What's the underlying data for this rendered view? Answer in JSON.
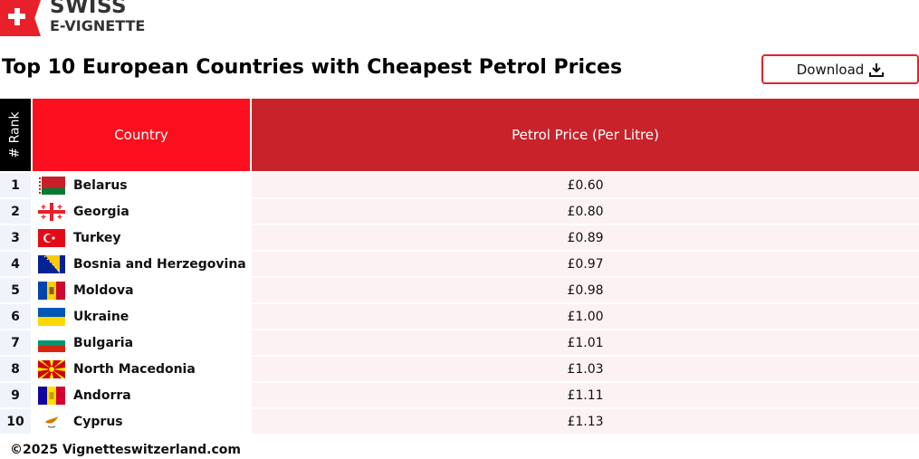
{
  "logo": {
    "line1": "SWISS",
    "line2": "E-VIGNETTE"
  },
  "title": "Top 10 European Countries with Cheapest Petrol Prices",
  "download_label": "Download",
  "table": {
    "headers": {
      "rank": "# Rank",
      "country": "Country",
      "price": "Petrol Price (Per Litre)"
    },
    "rows": [
      {
        "rank": "1",
        "country": "Belarus",
        "price": "£0.60",
        "flag": "belarus"
      },
      {
        "rank": "2",
        "country": "Georgia",
        "price": "£0.80",
        "flag": "georgia"
      },
      {
        "rank": "3",
        "country": "Turkey",
        "price": "£0.89",
        "flag": "turkey"
      },
      {
        "rank": "4",
        "country": "Bosnia and Herzegovina",
        "price": "£0.97",
        "flag": "bosnia"
      },
      {
        "rank": "5",
        "country": "Moldova",
        "price": "£0.98",
        "flag": "moldova"
      },
      {
        "rank": "6",
        "country": "Ukraine",
        "price": "£1.00",
        "flag": "ukraine"
      },
      {
        "rank": "7",
        "country": "Bulgaria",
        "price": "£1.01",
        "flag": "bulgaria"
      },
      {
        "rank": "8",
        "country": "North Macedonia",
        "price": "£1.03",
        "flag": "macedonia"
      },
      {
        "rank": "9",
        "country": "Andorra",
        "price": "£1.11",
        "flag": "andorra"
      },
      {
        "rank": "10",
        "country": "Cyprus",
        "price": "£1.13",
        "flag": "cyprus"
      }
    ]
  },
  "footer": "©2025 Vignetteswitzerland.com",
  "colors": {
    "brand_red": "#fb0f1e",
    "dark_red": "#c8232b"
  }
}
